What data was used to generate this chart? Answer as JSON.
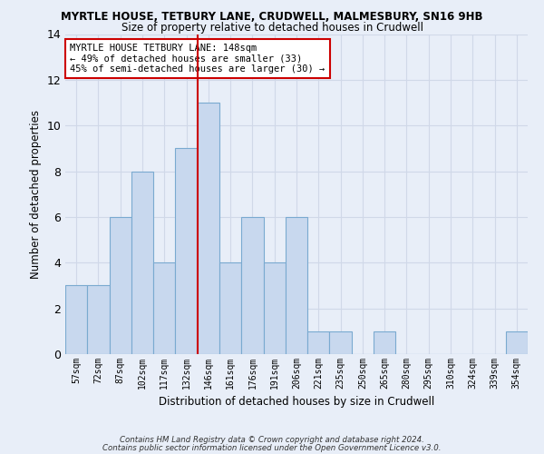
{
  "title1": "MYRTLE HOUSE, TETBURY LANE, CRUDWELL, MALMESBURY, SN16 9HB",
  "title2": "Size of property relative to detached houses in Crudwell",
  "xlabel": "Distribution of detached houses by size in Crudwell",
  "ylabel": "Number of detached properties",
  "bins": [
    "57sqm",
    "72sqm",
    "87sqm",
    "102sqm",
    "117sqm",
    "132sqm",
    "146sqm",
    "161sqm",
    "176sqm",
    "191sqm",
    "206sqm",
    "221sqm",
    "235sqm",
    "250sqm",
    "265sqm",
    "280sqm",
    "295sqm",
    "310sqm",
    "324sqm",
    "339sqm",
    "354sqm"
  ],
  "counts": [
    3,
    3,
    6,
    8,
    4,
    9,
    11,
    4,
    6,
    4,
    6,
    1,
    1,
    0,
    1,
    0,
    0,
    0,
    0,
    0,
    1
  ],
  "bar_color": "#c8d8ee",
  "bar_edge_color": "#7aaad0",
  "grid_color": "#d0d8e8",
  "subject_bin_index": 6,
  "subject_line_color": "#cc0000",
  "annotation_text": "MYRTLE HOUSE TETBURY LANE: 148sqm\n← 49% of detached houses are smaller (33)\n45% of semi-detached houses are larger (30) →",
  "annotation_box_color": "#ffffff",
  "annotation_box_edge": "#cc0000",
  "ylim": [
    0,
    14
  ],
  "yticks": [
    0,
    2,
    4,
    6,
    8,
    10,
    12,
    14
  ],
  "footnote1": "Contains HM Land Registry data © Crown copyright and database right 2024.",
  "footnote2": "Contains public sector information licensed under the Open Government Licence v3.0.",
  "bg_color": "#e8eef8"
}
